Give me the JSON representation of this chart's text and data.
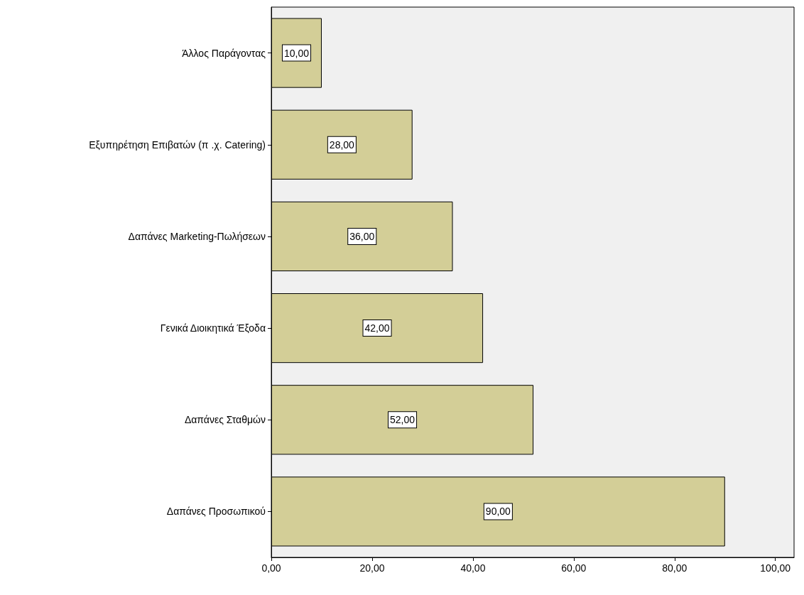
{
  "chart_data": {
    "type": "bar",
    "orientation": "horizontal",
    "categories": [
      "Άλλος Παράγοντας",
      "Εξυπηρέτηση Επιβατών (π .χ. Catering)",
      "Δαπάνες Marketing-Πωλήσεων",
      "Γενικά Διοικητικά Έξοδα",
      "Δαπάνες Σταθμών",
      "Δαπάνες Προσωπικού"
    ],
    "values": [
      10,
      28,
      36,
      42,
      52,
      90
    ],
    "value_labels": [
      "10,00",
      "28,00",
      "36,00",
      "42,00",
      "52,00",
      "90,00"
    ],
    "color": "#d3ce97",
    "xlim": [
      0,
      103.7
    ],
    "xticks": [
      {
        "value": 0,
        "label": "0,00"
      },
      {
        "value": 20,
        "label": "20,00"
      },
      {
        "value": 40,
        "label": "40,00"
      },
      {
        "value": 60,
        "label": "60,00"
      },
      {
        "value": 80,
        "label": "80,00"
      },
      {
        "value": 100,
        "label": "100,00"
      }
    ],
    "grid": false
  }
}
